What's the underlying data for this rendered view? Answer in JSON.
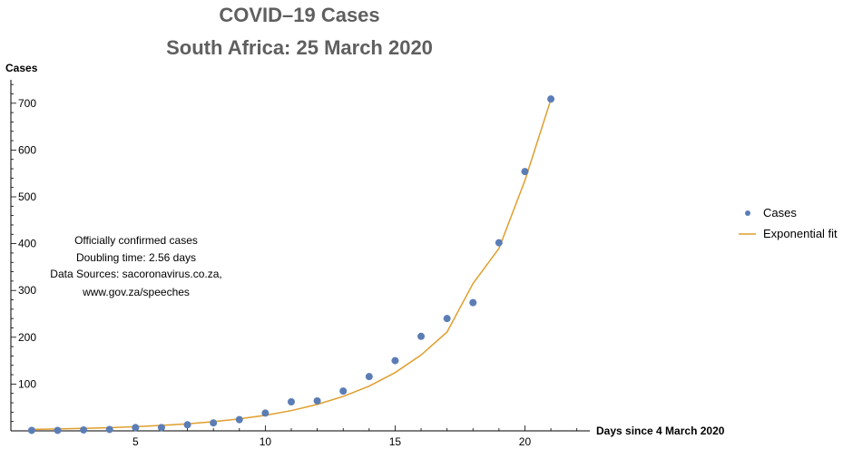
{
  "chart_data": {
    "type": "scatter",
    "title": "COVID–19 Cases",
    "subtitle": "South Africa: 25 March 2020",
    "xlabel": "Days since 4 March 2020",
    "ylabel": "Cases",
    "xlim": [
      0.2,
      22.5
    ],
    "ylim": [
      0,
      750
    ],
    "x_ticks": [
      5,
      10,
      15,
      20
    ],
    "y_ticks": [
      100,
      200,
      300,
      400,
      500,
      600,
      700
    ],
    "grid": false,
    "legend_position": "right",
    "annotation_lines": [
      "Officially confirmed cases",
      "Doubling time: 2.56 days",
      "Data Sources: sacoronavirus.co.za,",
      "www.gov.za/speeches"
    ],
    "series": [
      {
        "name": "Cases",
        "kind": "points",
        "color": "#5b7db5",
        "x": [
          1,
          2,
          3,
          4,
          5,
          6,
          7,
          8,
          9,
          10,
          11,
          12,
          13,
          14,
          15,
          16,
          17,
          18,
          19,
          20,
          21
        ],
        "y": [
          1,
          1,
          2,
          3,
          7,
          7,
          13,
          17,
          24,
          38,
          62,
          64,
          85,
          116,
          150,
          202,
          240,
          274,
          402,
          554,
          709
        ]
      },
      {
        "name": "Exponential fit",
        "kind": "line",
        "color": "#e09e2c",
        "x": [
          1,
          2,
          3,
          4,
          5,
          6,
          7,
          8,
          9,
          10,
          11,
          12,
          13,
          14,
          15,
          16,
          17,
          18,
          19,
          20,
          21
        ],
        "y": [
          3.1,
          4.1,
          5.3,
          6.8,
          8.9,
          11.6,
          15.0,
          19.6,
          25.5,
          33.2,
          43.3,
          56.3,
          73.4,
          95.5,
          124.4,
          162.0,
          211.1,
          315.0,
          390.0,
          535.0,
          708.0
        ]
      }
    ]
  }
}
